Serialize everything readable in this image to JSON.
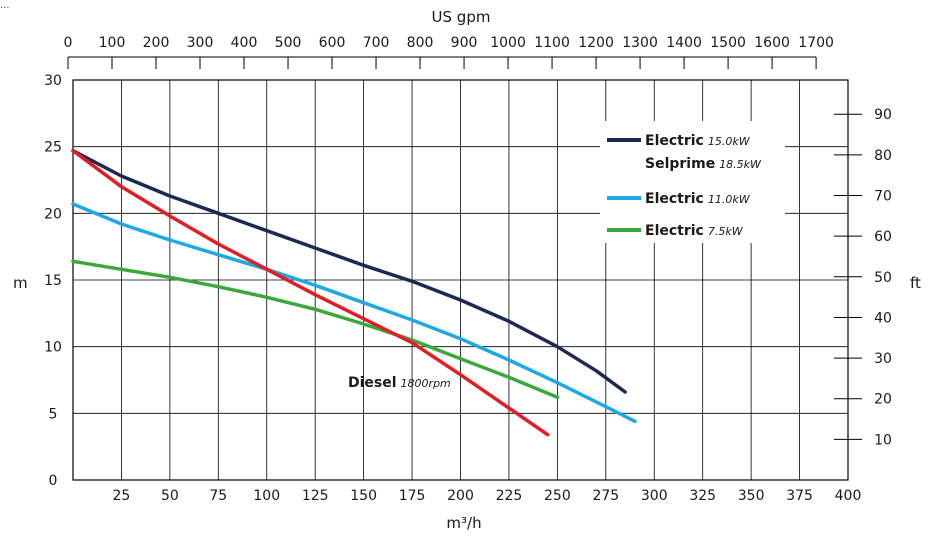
{
  "top_text": "...",
  "chart_data": {
    "type": "line",
    "xlabel": "m³/h",
    "x_ticks": [
      25,
      50,
      75,
      100,
      125,
      150,
      175,
      200,
      225,
      250,
      275,
      300,
      325,
      350,
      375,
      400
    ],
    "xlim": [
      0,
      400
    ],
    "ylabel": "m",
    "ylim": [
      0,
      30
    ],
    "y_ticks": [
      0,
      5,
      10,
      15,
      20,
      25,
      30
    ],
    "top_axis": {
      "label": "US gpm",
      "ticks": [
        0,
        100,
        200,
        300,
        400,
        500,
        600,
        700,
        800,
        900,
        1000,
        1100,
        1200,
        1300,
        1400,
        1500,
        1600,
        1700
      ]
    },
    "right_axis": {
      "label": "ft",
      "ticks": [
        10,
        20,
        30,
        40,
        50,
        60,
        70,
        80,
        90
      ]
    },
    "grid": true,
    "legend_position": "top-right",
    "series": [
      {
        "label_bold": "Electric",
        "label_italic": "15.0kW",
        "label2_bold": "Selprime",
        "label2_italic": "18.5kW",
        "color": "#1b2a50",
        "x": [
          0,
          25,
          50,
          75,
          100,
          125,
          150,
          175,
          200,
          225,
          250,
          270,
          285
        ],
        "y": [
          24.7,
          22.8,
          21.3,
          20.0,
          18.7,
          17.4,
          16.1,
          14.9,
          13.5,
          11.9,
          10.0,
          8.2,
          6.6
        ]
      },
      {
        "label_bold": "Electric",
        "label_italic": "11.0kW",
        "color": "#1ea8e6",
        "x": [
          0,
          25,
          50,
          75,
          100,
          125,
          150,
          175,
          200,
          225,
          250,
          275,
          290
        ],
        "y": [
          20.7,
          19.2,
          18.0,
          16.9,
          15.8,
          14.6,
          13.3,
          12.0,
          10.6,
          9.0,
          7.3,
          5.5,
          4.4
        ]
      },
      {
        "label_bold": "Electric",
        "label_italic": "7.5kW",
        "color": "#3aa83a",
        "x": [
          0,
          25,
          50,
          75,
          100,
          125,
          150,
          175,
          200,
          225,
          250
        ],
        "y": [
          16.4,
          15.8,
          15.2,
          14.5,
          13.7,
          12.8,
          11.7,
          10.5,
          9.1,
          7.7,
          6.2
        ]
      },
      {
        "label_bold": "Diesel",
        "label_italic": "1800rpm",
        "color": "#e01e25",
        "x": [
          0,
          25,
          50,
          75,
          100,
          125,
          150,
          175,
          200,
          225,
          245
        ],
        "y": [
          24.7,
          22.0,
          19.8,
          17.7,
          15.8,
          13.9,
          12.1,
          10.3,
          7.9,
          5.4,
          3.4
        ]
      }
    ]
  }
}
